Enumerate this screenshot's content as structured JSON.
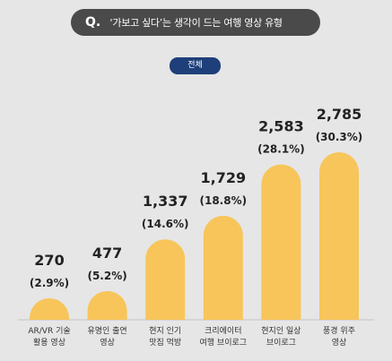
{
  "header": {
    "q_mark": "Q.",
    "question": "‘가보고 싶다’는 생각이 드는 여행 영상 유형"
  },
  "filter": {
    "label": "전체"
  },
  "chart_data": {
    "type": "bar",
    "categories": [
      [
        "AR/VR 기술",
        "활용 영상"
      ],
      [
        "유명인 출연",
        "영상"
      ],
      [
        "현지 인기",
        "맛집 먹방"
      ],
      [
        "크리에이터",
        "여행 브이로그"
      ],
      [
        "현지인 일상",
        "브이로그"
      ],
      [
        "풍경 위주",
        "영상"
      ]
    ],
    "values": [
      270,
      477,
      1337,
      1729,
      2583,
      2785
    ],
    "value_labels": [
      "270",
      "477",
      "1,337",
      "1,729",
      "2,583",
      "2,785"
    ],
    "percent_labels": [
      "(2.9%)",
      "(5.2%)",
      "(14.6%)",
      "(18.8%)",
      "(28.1%)",
      "(30.3%)"
    ],
    "bar_color": "#f7c55a"
  }
}
